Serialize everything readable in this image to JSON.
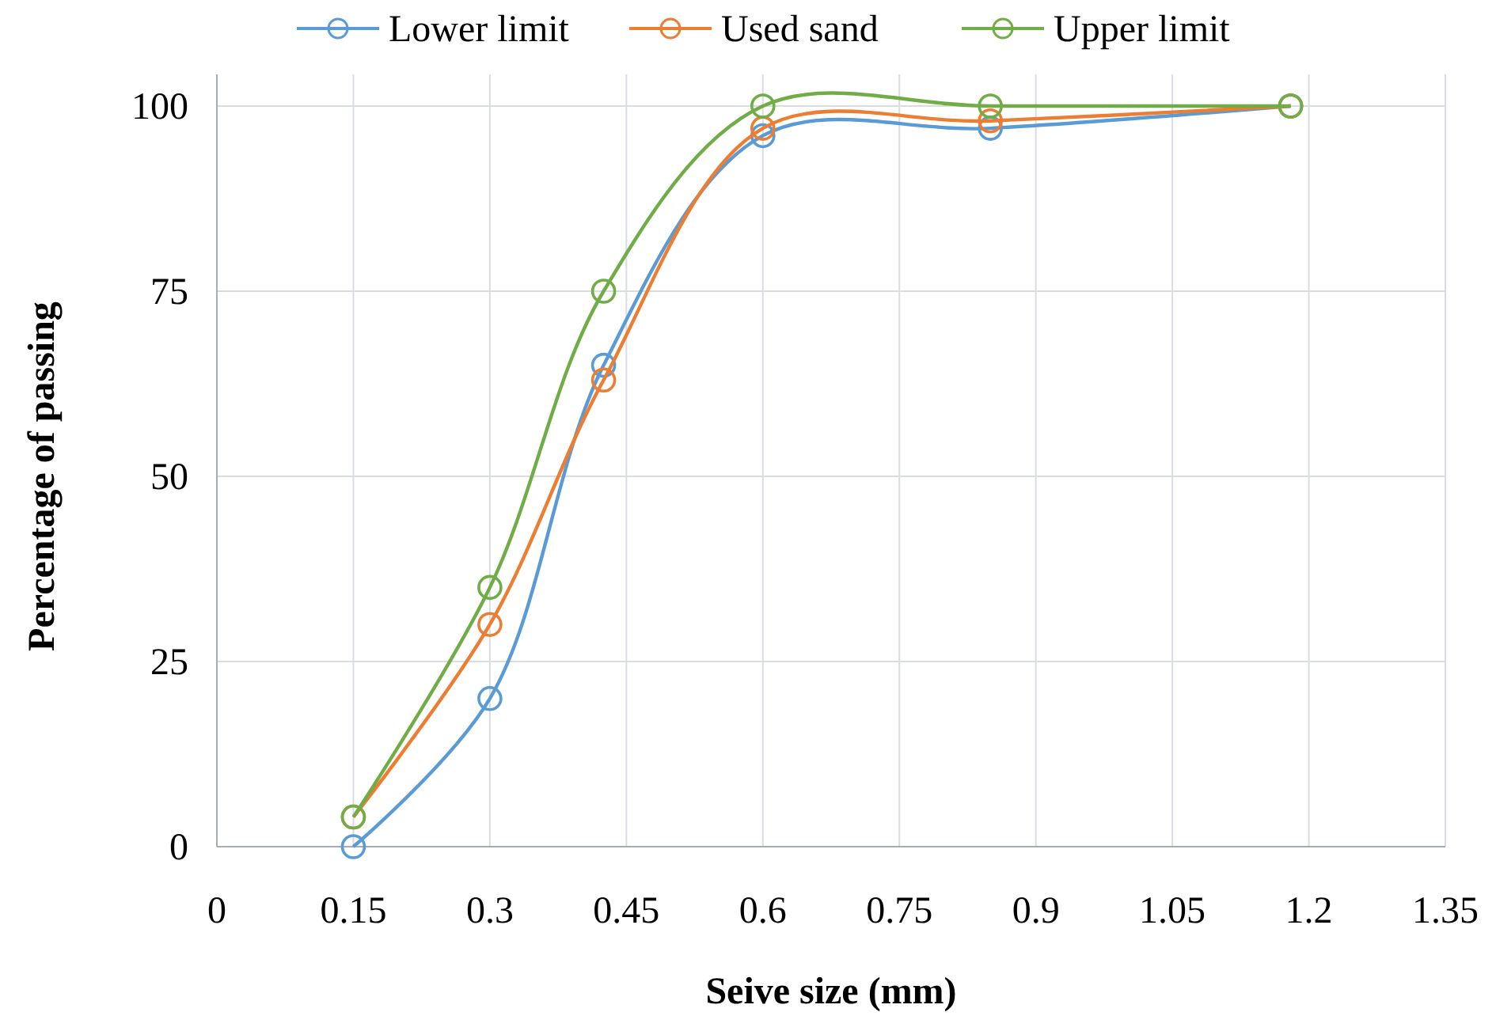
{
  "chart_data": {
    "type": "line",
    "xlabel": "Seive size (mm)",
    "ylabel": "Percentage of passing",
    "x": [
      0.15,
      0.3,
      0.425,
      0.6,
      0.85,
      1.18
    ],
    "series": [
      {
        "name": "Lower limit",
        "color": "#5b9bd5",
        "values": [
          0,
          20,
          65,
          96,
          97,
          100
        ]
      },
      {
        "name": "Used sand",
        "color": "#ed7d31",
        "values": [
          4,
          30,
          63,
          97,
          98,
          100
        ]
      },
      {
        "name": "Upper limit",
        "color": "#70ad47",
        "values": [
          4,
          35,
          75,
          100,
          100,
          100
        ]
      }
    ],
    "xlim": [
      0,
      1.35
    ],
    "xticks": [
      0,
      0.15,
      0.3,
      0.45,
      0.6,
      0.75,
      0.9,
      1.05,
      1.2,
      1.35
    ],
    "ylim": [
      0,
      100
    ],
    "yticks": [
      0,
      25,
      50,
      75,
      100
    ],
    "grid": true,
    "legend": "top",
    "marker": "circle",
    "line_style": "solid"
  }
}
